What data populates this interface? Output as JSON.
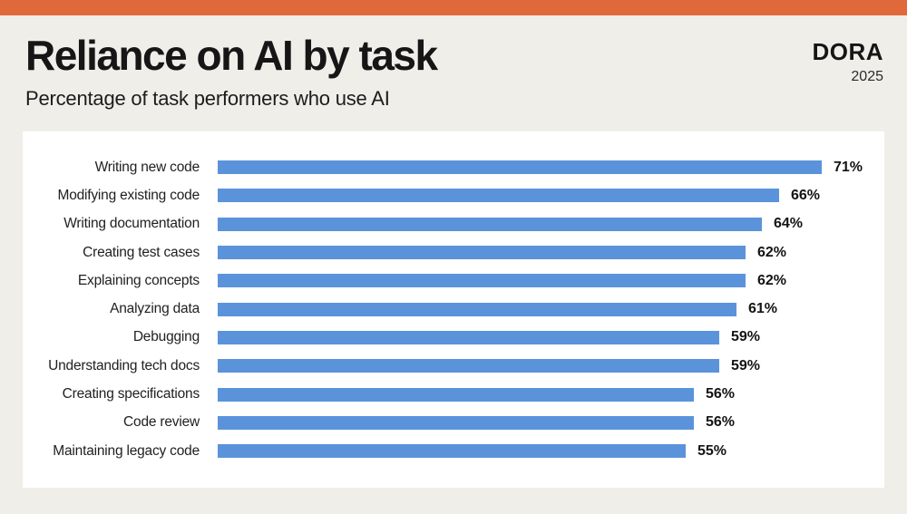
{
  "page": {
    "title": "Reliance on AI by task",
    "subtitle": "Percentage of task performers who use AI",
    "brand": "DORA",
    "year": "2025"
  },
  "colors": {
    "accent_orange": "#E0693C",
    "bar_blue": "#5B93DB",
    "background_cream": "#F0EEE9",
    "panel_white": "#FFFFFF",
    "text_black": "#161616"
  },
  "chart_data": {
    "type": "bar",
    "orientation": "horizontal",
    "title": "Reliance on AI by task",
    "subtitle": "Percentage of task performers who use AI",
    "unit": "%",
    "xlim": [
      0,
      75
    ],
    "grid": false,
    "value_labels": "end-of-bar",
    "categories": [
      "Writing new code",
      "Modifying existing code",
      "Writing documentation",
      "Creating test cases",
      "Explaining concepts",
      "Analyzing data",
      "Debugging",
      "Understanding tech docs",
      "Creating specifications",
      "Code review",
      "Maintaining legacy code"
    ],
    "values": [
      71,
      66,
      64,
      62,
      62,
      61,
      59,
      59,
      56,
      56,
      55
    ]
  }
}
